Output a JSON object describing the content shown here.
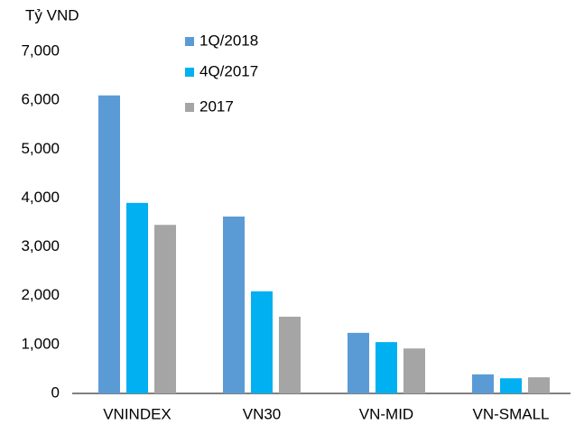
{
  "chart_data": {
    "type": "bar",
    "y_label": "Tỷ VND",
    "categories": [
      "VNINDEX",
      "VN30",
      "VN-MID",
      "VN-SMALL"
    ],
    "series": [
      {
        "name": "1Q/2018",
        "color": "#5b9bd5",
        "values": [
          6100,
          3620,
          1240,
          390
        ]
      },
      {
        "name": "4Q/2017",
        "color": "#00b0f0",
        "values": [
          3900,
          2090,
          1050,
          310
        ]
      },
      {
        "name": "2017",
        "color": "#a5a5a5",
        "values": [
          3450,
          1570,
          920,
          330
        ]
      }
    ],
    "ylim": [
      0,
      7000
    ],
    "yticks": [
      0,
      {
        "value": 1000,
        "label": "1,000"
      },
      {
        "value": 2000,
        "label": "2,000"
      },
      {
        "value": 3000,
        "label": "3,000"
      },
      {
        "value": 4000,
        "label": "4,000"
      },
      {
        "value": 5000,
        "label": "5,000"
      },
      {
        "value": 6000,
        "label": "6,000"
      },
      {
        "value": 7000,
        "label": "7,000"
      }
    ],
    "grid": false,
    "legend": "top"
  }
}
